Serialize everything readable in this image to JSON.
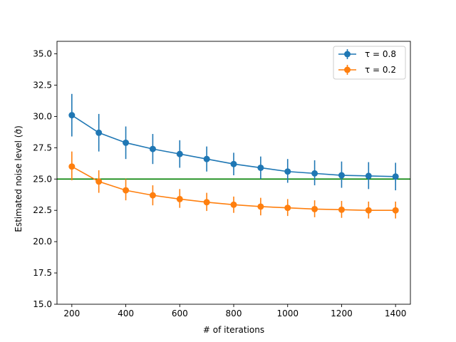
{
  "chart_data": {
    "type": "line",
    "title": "",
    "xlabel": "# of iterations",
    "ylabel": "Estimated noise level (σ̂)",
    "xlim": [
      145,
      1455
    ],
    "ylim": [
      15.0,
      36.0
    ],
    "xticks": [
      200,
      400,
      600,
      800,
      1000,
      1200,
      1400
    ],
    "xtick_labels": [
      "200",
      "400",
      "600",
      "800",
      "1000",
      "1200",
      "1400"
    ],
    "yticks": [
      15.0,
      17.5,
      20.0,
      22.5,
      25.0,
      27.5,
      30.0,
      32.5,
      35.0
    ],
    "ytick_labels": [
      "15.0",
      "17.5",
      "20.0",
      "22.5",
      "25.0",
      "27.5",
      "30.0",
      "32.5",
      "35.0"
    ],
    "x": [
      200,
      300,
      400,
      500,
      600,
      700,
      800,
      900,
      1000,
      1100,
      1200,
      1300,
      1400
    ],
    "grid": false,
    "legend_position": "top-right",
    "series": [
      {
        "name": "τ = 0.8",
        "color": "#1f77b4",
        "values": [
          30.1,
          28.7,
          27.9,
          27.4,
          27.0,
          26.6,
          26.2,
          25.9,
          25.6,
          25.45,
          25.3,
          25.25,
          25.2
        ],
        "err_low": [
          28.4,
          27.2,
          26.6,
          26.2,
          25.9,
          25.6,
          25.3,
          25.0,
          24.7,
          24.5,
          24.3,
          24.2,
          24.1
        ],
        "err_high": [
          31.8,
          30.2,
          29.2,
          28.6,
          28.1,
          27.6,
          27.1,
          26.8,
          26.6,
          26.5,
          26.4,
          26.35,
          26.3
        ]
      },
      {
        "name": "τ = 0.2",
        "color": "#ff7f0e",
        "values": [
          26.0,
          24.8,
          24.1,
          23.7,
          23.4,
          23.15,
          22.95,
          22.8,
          22.7,
          22.6,
          22.55,
          22.5,
          22.5
        ],
        "err_low": [
          24.9,
          23.9,
          23.3,
          22.9,
          22.7,
          22.45,
          22.3,
          22.1,
          22.05,
          21.95,
          21.9,
          21.85,
          21.85
        ],
        "err_high": [
          27.2,
          25.7,
          25.0,
          24.5,
          24.2,
          23.9,
          23.6,
          23.5,
          23.4,
          23.3,
          23.25,
          23.2,
          23.2
        ]
      }
    ],
    "reference_line": {
      "y": 25.0,
      "color": "#008000"
    }
  }
}
